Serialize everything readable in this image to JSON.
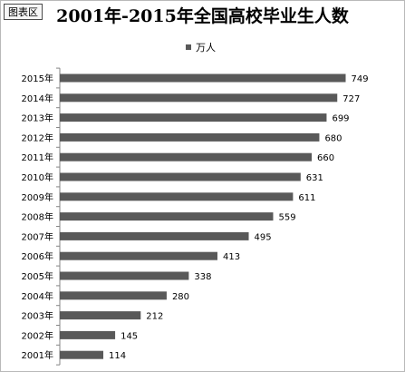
{
  "chart_area_label": "图表区",
  "chart_data": {
    "type": "bar",
    "orientation": "horizontal",
    "title": "2001年-2015年全国高校毕业生人数",
    "categories": [
      "2015年",
      "2014年",
      "2013年",
      "2012年",
      "2011年",
      "2010年",
      "2009年",
      "2008年",
      "2007年",
      "2006年",
      "2005年",
      "2004年",
      "2003年",
      "2002年",
      "2001年"
    ],
    "series": [
      {
        "name": "万人",
        "values": [
          749,
          727,
          699,
          680,
          660,
          631,
          611,
          559,
          495,
          413,
          338,
          280,
          212,
          145,
          114
        ]
      }
    ],
    "xlim": [
      0,
      800
    ],
    "grid": false,
    "legend_position": "top",
    "bar_color": "#595959",
    "data_labels": true
  }
}
